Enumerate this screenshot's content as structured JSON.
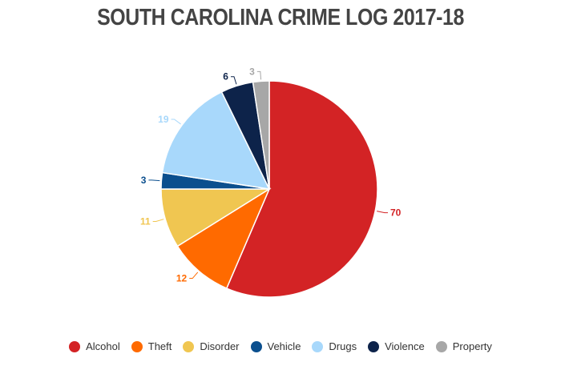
{
  "chart_data": {
    "type": "pie",
    "title": "SOUTH CAROLINA CRIME LOG 2017-18",
    "start_angle": "12 o'clock, clockwise",
    "slices": [
      {
        "label": "Alcohol",
        "value": 70,
        "color": "#d32325"
      },
      {
        "label": "Theft",
        "value": 12,
        "color": "#ff6a00"
      },
      {
        "label": "Disorder",
        "value": 11,
        "color": "#f0c651"
      },
      {
        "label": "Vehicle",
        "value": 3,
        "color": "#0b4f8e"
      },
      {
        "label": "Drugs",
        "value": 19,
        "color": "#a8d8fb"
      },
      {
        "label": "Violence",
        "value": 6,
        "color": "#0d234a"
      },
      {
        "label": "Property",
        "value": 3,
        "color": "#a7a7a7"
      }
    ],
    "legend_position": "bottom",
    "data_labels": true
  },
  "title": "SOUTH CAROLINA CRIME LOG 2017-18"
}
